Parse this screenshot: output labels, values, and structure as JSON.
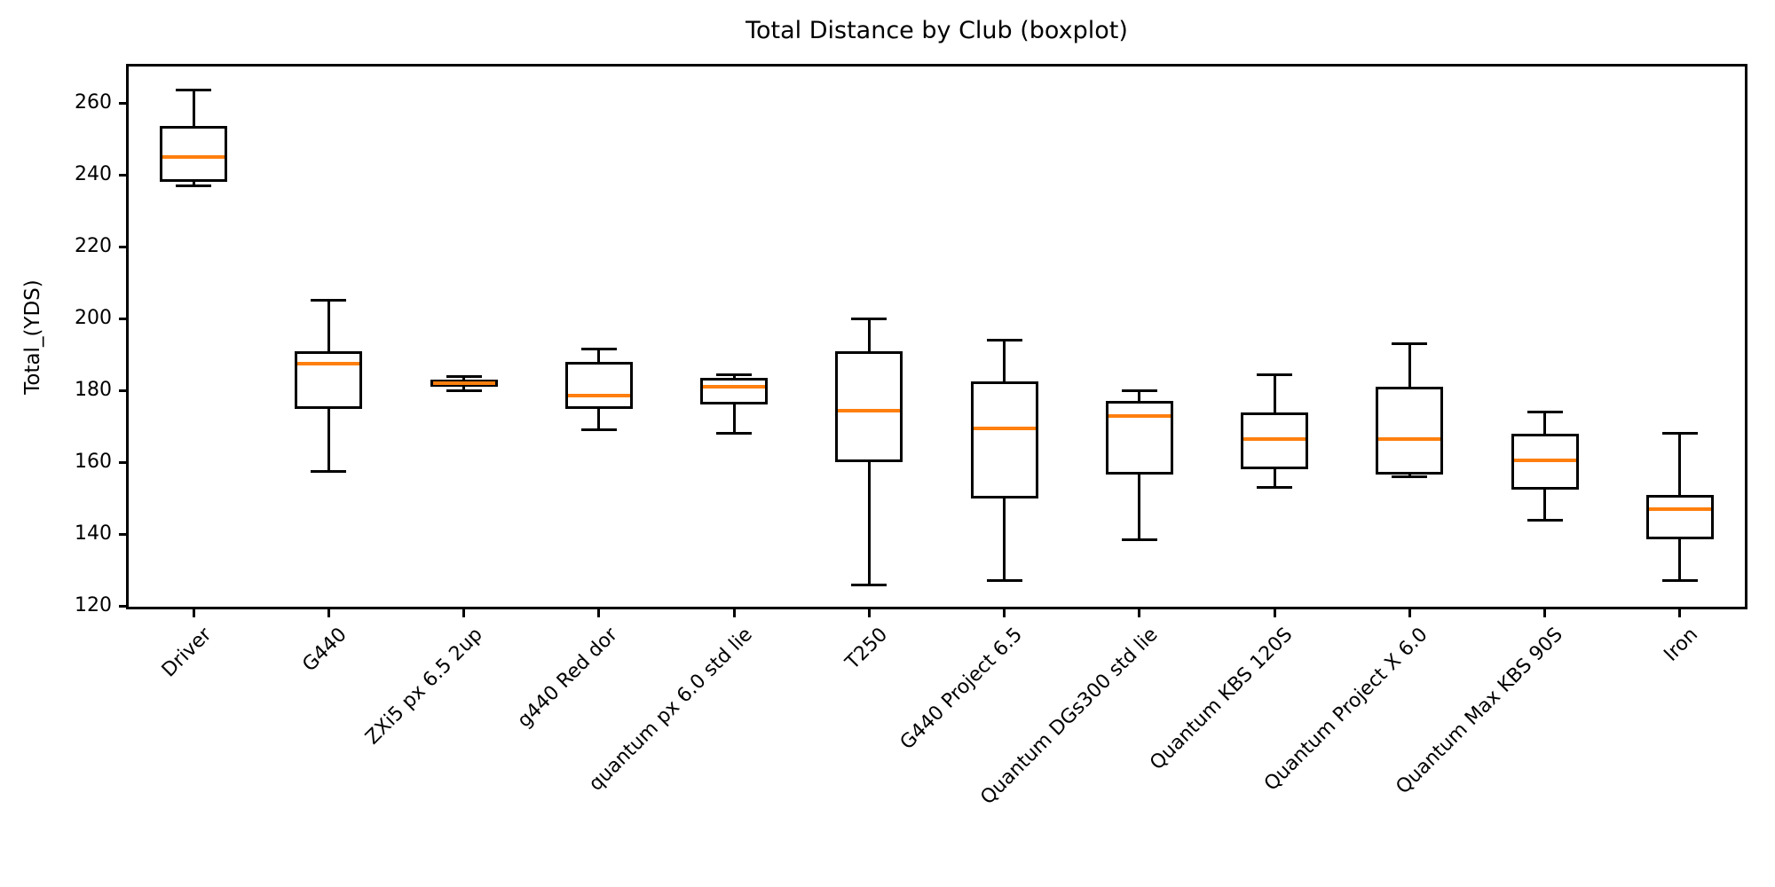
{
  "chart_data": {
    "type": "boxplot",
    "title": "Total Distance by Club (boxplot)",
    "xlabel": "",
    "ylabel": "Total_(YDS)",
    "yticks": [
      120,
      140,
      160,
      180,
      200,
      220,
      240,
      260
    ],
    "ylim": [
      119.1,
      270.9
    ],
    "xtick_rotation": 45,
    "grid": false,
    "box_color": "#000000",
    "median_color": "#ff7f0e",
    "background_color": "#ffffff",
    "categories": [
      "Driver",
      "G440",
      "ZXi5 px 6.5 2up",
      "g440 Red dor",
      "quantum px 6.0 std lie",
      "T250",
      "G440 Project 6.5",
      "Quantum DGs300 std lie",
      "Quantum KBS 120S",
      "Quantum Project X 6.0",
      "Quantum Max KBS 90S",
      "Iron"
    ],
    "series": [
      {
        "name": "Driver",
        "whisker_low": 237,
        "q1": 238,
        "median": 245,
        "q3": 253.5,
        "whisker_high": 263.5
      },
      {
        "name": "G440",
        "whisker_low": 157.5,
        "q1": 175,
        "median": 187.5,
        "q3": 191,
        "whisker_high": 205
      },
      {
        "name": "ZXi5 px 6.5 2up",
        "whisker_low": 180,
        "q1": 181,
        "median": 182,
        "q3": 183,
        "whisker_high": 184
      },
      {
        "name": "g440 Red dor",
        "whisker_low": 169,
        "q1": 175,
        "median": 178.5,
        "q3": 188,
        "whisker_high": 191.5
      },
      {
        "name": "quantum px 6.0 std lie",
        "whisker_low": 168,
        "q1": 176,
        "median": 181,
        "q3": 183.5,
        "whisker_high": 184.5
      },
      {
        "name": "T250",
        "whisker_low": 126,
        "q1": 160,
        "median": 174.5,
        "q3": 191,
        "whisker_high": 200
      },
      {
        "name": "G440 Project 6.5",
        "whisker_low": 127,
        "q1": 150,
        "median": 169.5,
        "q3": 182.5,
        "whisker_high": 194
      },
      {
        "name": "Quantum DGs300 std lie",
        "whisker_low": 138.5,
        "q1": 156.5,
        "median": 173,
        "q3": 177,
        "whisker_high": 180
      },
      {
        "name": "Quantum KBS 120S",
        "whisker_low": 153,
        "q1": 158,
        "median": 166.5,
        "q3": 174,
        "whisker_high": 184.5
      },
      {
        "name": "Quantum Project X 6.0",
        "whisker_low": 156,
        "q1": 156.5,
        "median": 166.5,
        "q3": 181,
        "whisker_high": 193
      },
      {
        "name": "Quantum Max KBS 90S",
        "whisker_low": 144,
        "q1": 152.5,
        "median": 160.5,
        "q3": 168,
        "whisker_high": 174
      },
      {
        "name": "Iron",
        "whisker_low": 127,
        "q1": 138.5,
        "median": 147,
        "q3": 151,
        "whisker_high": 168
      }
    ]
  }
}
